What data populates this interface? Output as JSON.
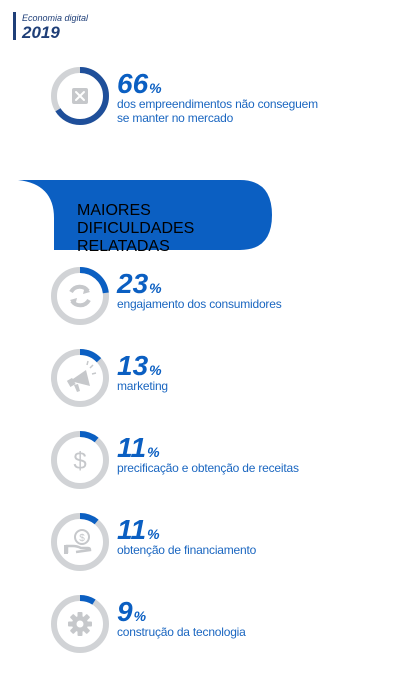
{
  "header": {
    "subtitle": "Economia digital",
    "year": "2019"
  },
  "headline": {
    "value": "66",
    "symbol": "%",
    "description_line1": "dos empreendimentos não conseguem",
    "description_line2": "se manter no mercado",
    "icon": "x-box-icon"
  },
  "banner": {
    "line1": "MAIORES DIFICULDADES",
    "line2": "RELATADAS"
  },
  "colors": {
    "accent": "#0b5fc2",
    "ring": "#1f4f9a",
    "track": "#d1d3d6",
    "icon": "#c6c8cb",
    "banner": "#0b5fc2"
  },
  "chart_data": {
    "type": "bar",
    "title": "MAIORES DIFICULDADES RELATADAS",
    "categories": [
      "engajamento dos consumidores",
      "marketing",
      "precificação e obtenção de receitas",
      "obtenção de financiamento",
      "construção da tecnologia"
    ],
    "values": [
      23,
      13,
      11,
      11,
      9
    ],
    "unit": "%",
    "icons": [
      "refresh-icon",
      "megaphone-icon",
      "dollar-icon",
      "money-hand-icon",
      "gear-icon"
    ]
  }
}
